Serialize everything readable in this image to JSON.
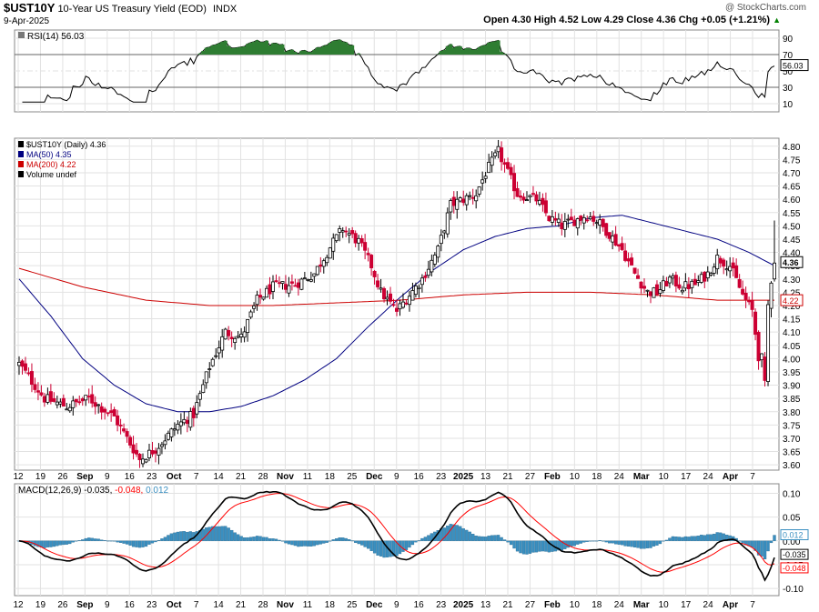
{
  "header": {
    "symbol": "$UST10Y",
    "name": "10-Year US Treasury Yield (EOD)",
    "exchange": "INDX",
    "date": "9-Apr-2025",
    "watermark": "@ StockCharts.com",
    "ohlc": "Open 4.30  High 4.52  Low 4.29  Close 4.36  Chg +0.05 (+1.21%)",
    "change_marker": "▲"
  },
  "rsi_panel": {
    "label": "RSI(14) 56.03",
    "value_tag": "56.03",
    "ticks": [
      "90",
      "70",
      "50",
      "30",
      "10"
    ]
  },
  "price_panel": {
    "legend": [
      {
        "text": "$UST10Y (Daily) 4.36",
        "color": "#000000"
      },
      {
        "text": "MA(50) 4.35",
        "color": "#000080"
      },
      {
        "text": "MA(200) 4.22",
        "color": "#cc0000"
      },
      {
        "text": "Volume undef",
        "color": "#000000"
      }
    ],
    "ticks": [
      "4.80",
      "4.75",
      "4.70",
      "4.65",
      "4.60",
      "4.55",
      "4.50",
      "4.45",
      "4.40",
      "4.35",
      "4.30",
      "4.25",
      "4.20",
      "4.15",
      "4.10",
      "4.05",
      "4.00",
      "3.95",
      "3.90",
      "3.85",
      "3.80",
      "3.75",
      "3.70",
      "3.65",
      "3.60"
    ],
    "close_tag": "4.36",
    "ma200_tag": "4.22"
  },
  "macd_panel": {
    "label_prefix": "MACD(12,26,9) -0.035,",
    "label_signal": " -0.048,",
    "label_hist": " 0.012",
    "ticks": [
      "0.10",
      "0.05",
      "0.00",
      "-0.05",
      "-0.10"
    ],
    "tags": [
      "0.012",
      "-0.035",
      "-0.048"
    ]
  },
  "x_axis": {
    "labels": [
      "12",
      "19",
      "26",
      "Sep",
      "9",
      "16",
      "23",
      "Oct",
      "7",
      "14",
      "21",
      "28",
      "Nov",
      "11",
      "18",
      "25",
      "Dec",
      "9",
      "16",
      "23",
      "2025",
      "13",
      "21",
      "27",
      "Feb",
      "10",
      "18",
      "24",
      "Mar",
      "10",
      "17",
      "24",
      "Apr",
      "7"
    ]
  },
  "colors": {
    "up": "#000000",
    "down": "#cc0033",
    "ma50": "#000080",
    "ma200": "#cc0000",
    "hist": "#3a8fc0",
    "rsi_fill": "#2e7d32",
    "signal": "#ff0000"
  },
  "chart_data": {
    "type": "candlestick",
    "title": "$UST10Y 10-Year US Treasury Yield (EOD)",
    "price_range": [
      3.58,
      4.83
    ],
    "yield_path": [
      [
        0,
        3.98
      ],
      [
        8,
        3.85
      ],
      [
        15,
        3.82
      ],
      [
        22,
        3.85
      ],
      [
        30,
        3.78
      ],
      [
        38,
        3.62
      ],
      [
        43,
        3.66
      ],
      [
        50,
        3.75
      ],
      [
        55,
        3.79
      ],
      [
        60,
        3.97
      ],
      [
        65,
        4.1
      ],
      [
        70,
        4.08
      ],
      [
        75,
        4.22
      ],
      [
        80,
        4.27
      ],
      [
        87,
        4.28
      ],
      [
        93,
        4.32
      ],
      [
        98,
        4.42
      ],
      [
        102,
        4.49
      ],
      [
        107,
        4.44
      ],
      [
        111,
        4.35
      ],
      [
        114,
        4.25
      ],
      [
        119,
        4.18
      ],
      [
        123,
        4.24
      ],
      [
        127,
        4.3
      ],
      [
        132,
        4.41
      ],
      [
        136,
        4.58
      ],
      [
        140,
        4.6
      ],
      [
        144,
        4.62
      ],
      [
        147,
        4.7
      ],
      [
        151,
        4.78
      ],
      [
        154,
        4.7
      ],
      [
        157,
        4.62
      ],
      [
        163,
        4.6
      ],
      [
        167,
        4.53
      ],
      [
        171,
        4.5
      ],
      [
        175,
        4.52
      ],
      [
        179,
        4.54
      ],
      [
        182,
        4.52
      ],
      [
        186,
        4.47
      ],
      [
        190,
        4.41
      ],
      [
        194,
        4.32
      ],
      [
        198,
        4.25
      ],
      [
        201,
        4.25
      ],
      [
        205,
        4.3
      ],
      [
        209,
        4.27
      ],
      [
        213,
        4.28
      ],
      [
        217,
        4.32
      ],
      [
        220,
        4.38
      ],
      [
        224,
        4.35
      ],
      [
        228,
        4.24
      ],
      [
        231,
        4.18
      ],
      [
        233,
        4.01
      ],
      [
        234,
        4.0
      ],
      [
        235,
        3.9
      ],
      [
        236,
        4.2
      ],
      [
        237,
        4.3
      ],
      [
        238,
        4.36
      ]
    ],
    "ma50_path": [
      [
        0,
        4.3
      ],
      [
        10,
        4.16
      ],
      [
        20,
        4.0
      ],
      [
        30,
        3.9
      ],
      [
        40,
        3.83
      ],
      [
        50,
        3.8
      ],
      [
        60,
        3.8
      ],
      [
        70,
        3.82
      ],
      [
        80,
        3.86
      ],
      [
        90,
        3.92
      ],
      [
        100,
        4.0
      ],
      [
        110,
        4.12
      ],
      [
        120,
        4.23
      ],
      [
        130,
        4.33
      ],
      [
        140,
        4.41
      ],
      [
        150,
        4.46
      ],
      [
        160,
        4.49
      ],
      [
        170,
        4.5
      ],
      [
        180,
        4.53
      ],
      [
        190,
        4.54
      ],
      [
        200,
        4.51
      ],
      [
        210,
        4.48
      ],
      [
        220,
        4.45
      ],
      [
        230,
        4.4
      ],
      [
        238,
        4.35
      ]
    ],
    "ma200_path": [
      [
        0,
        4.34
      ],
      [
        20,
        4.27
      ],
      [
        40,
        4.22
      ],
      [
        60,
        4.2
      ],
      [
        80,
        4.2
      ],
      [
        100,
        4.21
      ],
      [
        120,
        4.22
      ],
      [
        140,
        4.24
      ],
      [
        160,
        4.25
      ],
      [
        180,
        4.25
      ],
      [
        200,
        4.24
      ],
      [
        220,
        4.22
      ],
      [
        238,
        4.22
      ]
    ],
    "rsi": {
      "value": 56.03,
      "levels": [
        70,
        30
      ],
      "range": [
        0,
        100
      ]
    },
    "macd": {
      "macd": -0.035,
      "signal": -0.048,
      "histogram": 0.012,
      "range": [
        -0.115,
        0.12
      ]
    }
  }
}
